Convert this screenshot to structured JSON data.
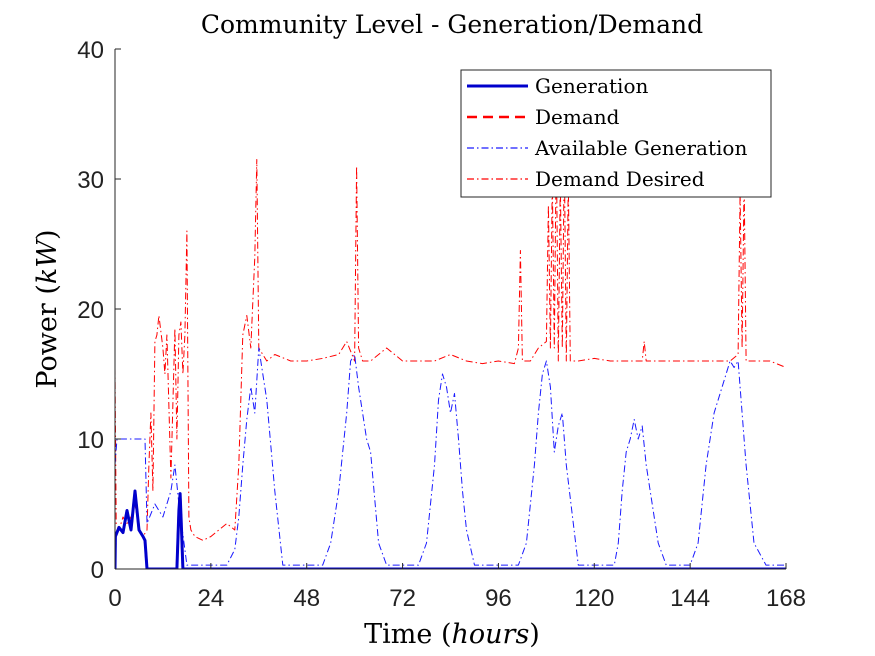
{
  "chart_data": {
    "type": "line",
    "title": "Community Level - Generation/Demand",
    "xlabel_text": "Time (",
    "xlabel_unit": "hours",
    "xlabel_close": ")",
    "ylabel_text": "Power (",
    "ylabel_unit": "kW",
    "ylabel_close": ")",
    "xlim": [
      0,
      168
    ],
    "ylim": [
      0,
      40
    ],
    "xticks": [
      0,
      24,
      48,
      72,
      96,
      120,
      144,
      168
    ],
    "yticks": [
      0,
      10,
      20,
      30,
      40
    ],
    "xtick_labels": [
      "0",
      "24",
      "48",
      "72",
      "96",
      "120",
      "144",
      "168"
    ],
    "ytick_labels": [
      "0",
      "10",
      "20",
      "30",
      "40"
    ],
    "grid": false,
    "legend_position": "top-right",
    "series": [
      {
        "name": "Generation",
        "color": "#0000cc",
        "style": "solid",
        "x": [
          0,
          0.1,
          1,
          2,
          3,
          4,
          5,
          6,
          7,
          7.5,
          8,
          15.5,
          16,
          16.3,
          16.6,
          17,
          168
        ],
        "y": [
          0,
          2.5,
          3.2,
          2.8,
          4.5,
          3.0,
          6.0,
          3.0,
          2.5,
          2.2,
          0,
          0,
          4.5,
          5.8,
          3.5,
          0,
          0
        ]
      },
      {
        "name": "Demand",
        "color": "#ff0000",
        "style": "dashed",
        "x": [
          0,
          0.1,
          1,
          2,
          3,
          4,
          5,
          6,
          7,
          7.5,
          8,
          15.5,
          16,
          16.3,
          16.6,
          17,
          168
        ],
        "y": [
          0,
          2.5,
          3.2,
          2.8,
          4.5,
          3.0,
          6.0,
          3.0,
          2.5,
          2.2,
          0,
          0,
          4.5,
          5.8,
          3.5,
          0,
          0
        ]
      },
      {
        "name": "Available Generation",
        "color": "#1a1aff",
        "style": "dashdot",
        "x": [
          0,
          0.5,
          7.5,
          8,
          10,
          12,
          14,
          15,
          16,
          18,
          19,
          20,
          22,
          25,
          28,
          30,
          31,
          32,
          33,
          34,
          35,
          36,
          37,
          38,
          40,
          42,
          44,
          52,
          54,
          56,
          58,
          59,
          60,
          61,
          62,
          63,
          64,
          66,
          68,
          76,
          78,
          80,
          81,
          82,
          83,
          84,
          85,
          86,
          87,
          88,
          90,
          101,
          103,
          105,
          106,
          107,
          108,
          109,
          110,
          111,
          112,
          113,
          116,
          125,
          126,
          127,
          128,
          129,
          130,
          131,
          132,
          133,
          134,
          135,
          136,
          138,
          144,
          146,
          148,
          150,
          152,
          153,
          154,
          155,
          156,
          157,
          158,
          160,
          163,
          168
        ],
        "y": [
          8,
          10,
          10,
          3.5,
          5,
          4,
          6,
          8,
          5,
          0.3,
          0.3,
          0.3,
          0.3,
          0.3,
          0.3,
          1.5,
          4,
          8,
          11.5,
          14,
          12,
          17,
          15,
          13,
          6,
          0.3,
          0.3,
          0.3,
          2,
          6,
          12,
          16,
          16.5,
          14,
          12,
          10,
          9,
          2,
          0.3,
          0.3,
          2,
          8,
          13,
          15,
          14,
          12,
          13.5,
          10,
          6,
          3,
          0.3,
          0.3,
          2,
          8,
          12,
          15,
          16,
          14,
          9,
          11,
          12,
          8,
          0.3,
          0.3,
          2,
          6,
          9,
          10,
          11.5,
          10,
          11,
          8,
          6,
          4,
          2,
          0.3,
          0.3,
          2,
          8,
          12,
          14,
          15,
          16,
          15.5,
          16,
          12,
          8,
          2,
          0.3,
          0.3
        ]
      },
      {
        "name": "Demand Desired",
        "color": "#ff0000",
        "style": "dashdot",
        "x": [
          0,
          0.3,
          1,
          2,
          3,
          4,
          5,
          6,
          7,
          8,
          8.5,
          9,
          9.5,
          10,
          10.5,
          11,
          12,
          12.5,
          13,
          14,
          15,
          15.5,
          16,
          16.5,
          17,
          17.5,
          18,
          18.5,
          19,
          20,
          22,
          24,
          26,
          28,
          30,
          31,
          32,
          33,
          34,
          35,
          35.5,
          36,
          37,
          38,
          40,
          44,
          48,
          52,
          56,
          58,
          60,
          60.5,
          61,
          62,
          64,
          66,
          68,
          72,
          76,
          80,
          84,
          88,
          92,
          96,
          100,
          101,
          101.5,
          102,
          104,
          106,
          108,
          108.5,
          109,
          109.5,
          110,
          110.5,
          111,
          111.5,
          112,
          112.5,
          113,
          113.5,
          114,
          116,
          120,
          124,
          128,
          130,
          132,
          132.5,
          133,
          134,
          136,
          140,
          144,
          148,
          152,
          154,
          156,
          156.5,
          157,
          157.5,
          158,
          160,
          164,
          168
        ],
        "y": [
          15.5,
          3.5,
          3,
          4,
          3.5,
          4,
          5,
          3,
          2.5,
          3,
          8,
          12,
          6,
          17.5,
          18,
          19.5,
          17,
          15,
          18,
          7,
          18.5,
          10,
          18,
          19,
          15,
          18,
          26,
          4,
          3,
          2.5,
          2.2,
          2.5,
          3,
          3.5,
          3,
          8,
          18,
          19.5,
          17,
          24,
          31.5,
          17,
          16.5,
          16,
          16.5,
          16,
          16,
          16.2,
          16.5,
          17.5,
          16,
          31,
          17,
          16,
          16,
          16.5,
          17,
          16,
          16,
          16,
          16.5,
          16,
          15.8,
          16,
          15.8,
          17,
          24.5,
          16,
          16,
          17,
          17.5,
          28,
          17,
          30,
          17,
          33,
          16,
          30,
          17,
          32,
          16,
          30,
          16,
          16,
          16.2,
          16,
          16,
          16,
          16,
          17.5,
          16,
          16,
          16,
          16,
          16,
          16,
          16,
          16,
          16.5,
          29,
          17,
          30,
          16,
          16,
          16,
          15.5
        ]
      }
    ]
  }
}
